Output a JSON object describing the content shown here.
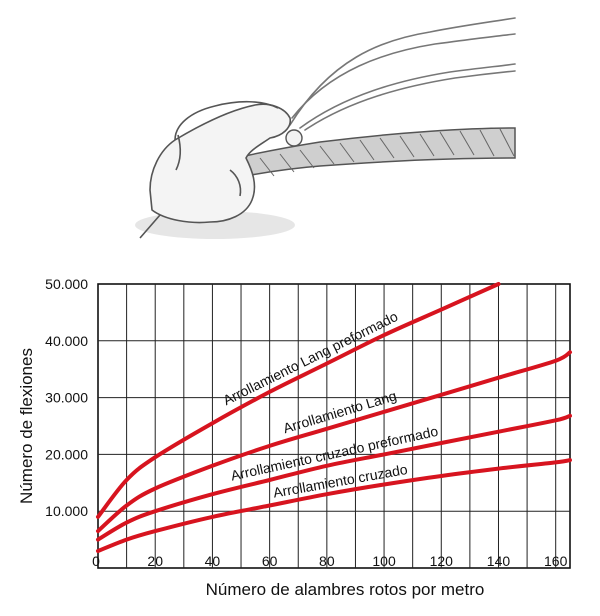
{
  "chart_data": {
    "type": "line",
    "xlabel": "Número de alambres rotos por metro",
    "ylabel": "Número de flexiones",
    "xlim": [
      0,
      165
    ],
    "ylim": [
      0,
      50000
    ],
    "x_ticks": [
      0,
      20,
      40,
      60,
      80,
      100,
      120,
      140,
      160
    ],
    "x_tick_labels": [
      "0",
      "20",
      "40",
      "60",
      "80",
      "100",
      "120",
      "140",
      "160"
    ],
    "y_ticks": [
      10000,
      20000,
      30000,
      40000,
      50000
    ],
    "y_tick_labels": [
      "10.000",
      "20.000",
      "30.000",
      "40.000",
      "50.000"
    ],
    "grid": true,
    "line_color": "#d7141f",
    "series": [
      {
        "name": "Arrollamiento Lang preformado",
        "x": [
          0,
          10,
          20,
          40,
          60,
          80,
          100,
          120,
          140
        ],
        "y": [
          9000,
          15500,
          19500,
          25500,
          31000,
          36000,
          41000,
          45500,
          50000
        ]
      },
      {
        "name": "Arrollamiento Lang",
        "x": [
          0,
          10,
          20,
          40,
          60,
          80,
          100,
          120,
          140,
          160,
          165
        ],
        "y": [
          6500,
          11000,
          14000,
          18000,
          21500,
          24500,
          27500,
          30500,
          33500,
          36500,
          38000
        ]
      },
      {
        "name": "Arrollamiento cruzado preformado",
        "x": [
          0,
          10,
          20,
          40,
          60,
          80,
          100,
          120,
          140,
          160,
          165
        ],
        "y": [
          5000,
          8000,
          10000,
          13000,
          15500,
          18000,
          20000,
          22000,
          24000,
          26000,
          26800
        ]
      },
      {
        "name": "Arrollamiento cruzado",
        "x": [
          0,
          10,
          20,
          40,
          60,
          80,
          100,
          120,
          140,
          160,
          165
        ],
        "y": [
          3000,
          5000,
          6500,
          9000,
          11000,
          13000,
          14700,
          16200,
          17500,
          18600,
          19000
        ]
      }
    ]
  }
}
